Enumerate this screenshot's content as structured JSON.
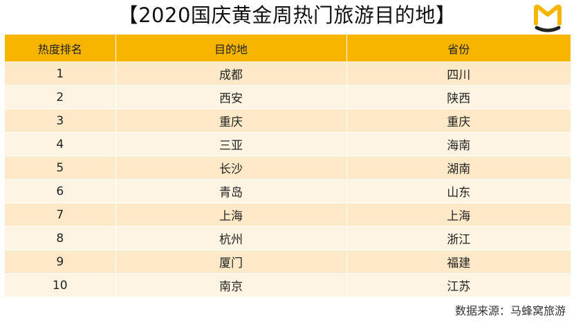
{
  "title": "【2020国庆黄金周热门旅游目的地】",
  "logo": {
    "icon": "mafengwo-m-logo",
    "color": "#f7b500",
    "smile_color": "#222222"
  },
  "colors": {
    "header": "#f7b500",
    "row_odd": "#fde9c8",
    "row_even": "#fef4e3"
  },
  "source": "数据来源：马蜂窝旅游",
  "chart_data": {
    "type": "table",
    "title": "【2020国庆黄金周热门旅游目的地】",
    "columns": [
      "热度排名",
      "目的地",
      "省份"
    ],
    "rows": [
      [
        "1",
        "成都",
        "四川"
      ],
      [
        "2",
        "西安",
        "陕西"
      ],
      [
        "3",
        "重庆",
        "重庆"
      ],
      [
        "4",
        "三亚",
        "海南"
      ],
      [
        "5",
        "长沙",
        "湖南"
      ],
      [
        "6",
        "青岛",
        "山东"
      ],
      [
        "7",
        "上海",
        "上海"
      ],
      [
        "8",
        "杭州",
        "浙江"
      ],
      [
        "9",
        "厦门",
        "福建"
      ],
      [
        "10",
        "南京",
        "江苏"
      ]
    ],
    "source": "数据来源：马蜂窝旅游"
  }
}
